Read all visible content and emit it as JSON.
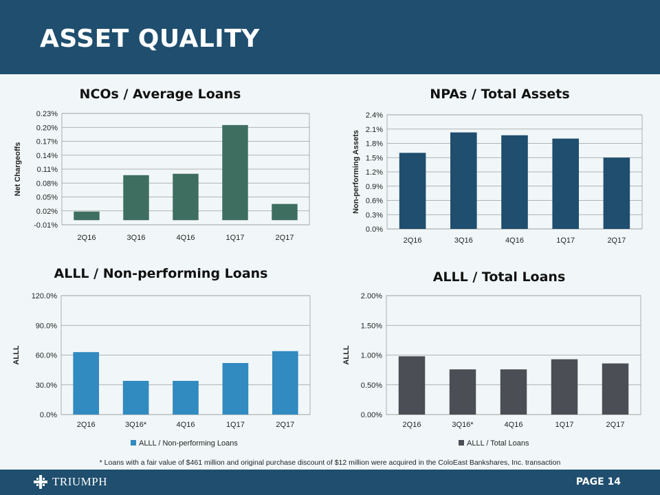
{
  "header": {
    "title": "ASSET QUALITY"
  },
  "colors": {
    "brand": "#1f4e6e",
    "background": "#f1f7f8"
  },
  "chart_data": [
    {
      "type": "bar",
      "title": "NCOs / Average Loans",
      "ylabel": "Net Chargeoffs",
      "xlabel": "",
      "categories": [
        "2Q16",
        "3Q16",
        "4Q16",
        "1Q17",
        "2Q17"
      ],
      "values": [
        0.0185,
        0.097,
        0.1,
        0.205,
        0.035
      ],
      "ylim": [
        -0.01,
        0.23
      ],
      "yticks": [
        "-0.01%",
        "0.02%",
        "0.05%",
        "0.08%",
        "0.11%",
        "0.14%",
        "0.17%",
        "0.20%",
        "0.23%"
      ],
      "color": "#3e6e60",
      "grid": true,
      "legend": null
    },
    {
      "type": "bar",
      "title": "NPAs / Total Assets",
      "ylabel": "Non-performing Assets",
      "xlabel": "",
      "categories": [
        "2Q16",
        "3Q16",
        "4Q16",
        "1Q17",
        "2Q17"
      ],
      "values": [
        1.6,
        2.03,
        1.97,
        1.9,
        1.5
      ],
      "ylim": [
        0,
        2.4
      ],
      "yticks": [
        "0.0%",
        "0.3%",
        "0.6%",
        "0.9%",
        "1.2%",
        "1.5%",
        "1.8%",
        "2.1%",
        "2.4%"
      ],
      "color": "#1f4e6e",
      "grid": true,
      "legend": null
    },
    {
      "type": "bar",
      "title": "ALLL / Non-performing Loans",
      "ylabel": "ALLL",
      "xlabel": "",
      "categories": [
        "2Q16",
        "3Q16*",
        "4Q16",
        "1Q17",
        "2Q17"
      ],
      "values": [
        63,
        34,
        34,
        52,
        64
      ],
      "ylim": [
        0,
        120
      ],
      "yticks": [
        "0.0%",
        "30.0%",
        "60.0%",
        "90.0%",
        "120.0%"
      ],
      "color": "#318ac0",
      "grid": true,
      "legend": {
        "position": "bottom",
        "label": "ALLL / Non-performing Loans"
      }
    },
    {
      "type": "bar",
      "title": "ALLL / Total Loans",
      "ylabel": "ALLL",
      "xlabel": "",
      "categories": [
        "2Q16",
        "3Q16*",
        "4Q16",
        "1Q17",
        "2Q17"
      ],
      "values": [
        0.98,
        0.76,
        0.76,
        0.93,
        0.86
      ],
      "ylim": [
        0,
        2.0
      ],
      "yticks": [
        "0.00%",
        "0.50%",
        "1.00%",
        "1.50%",
        "2.00%"
      ],
      "color": "#4b4e55",
      "grid": true,
      "legend": {
        "position": "bottom",
        "label": "ALLL / Total Loans"
      }
    }
  ],
  "footnote": "* Loans with a  fair value of $461 million and original purchase discount of $12 million were acquired in the ColoEast Bankshares, Inc. transaction",
  "footer": {
    "logo_text": "TRIUMPH",
    "page_label": "PAGE 14",
    "logo_icon": "triumph-cross-icon"
  }
}
